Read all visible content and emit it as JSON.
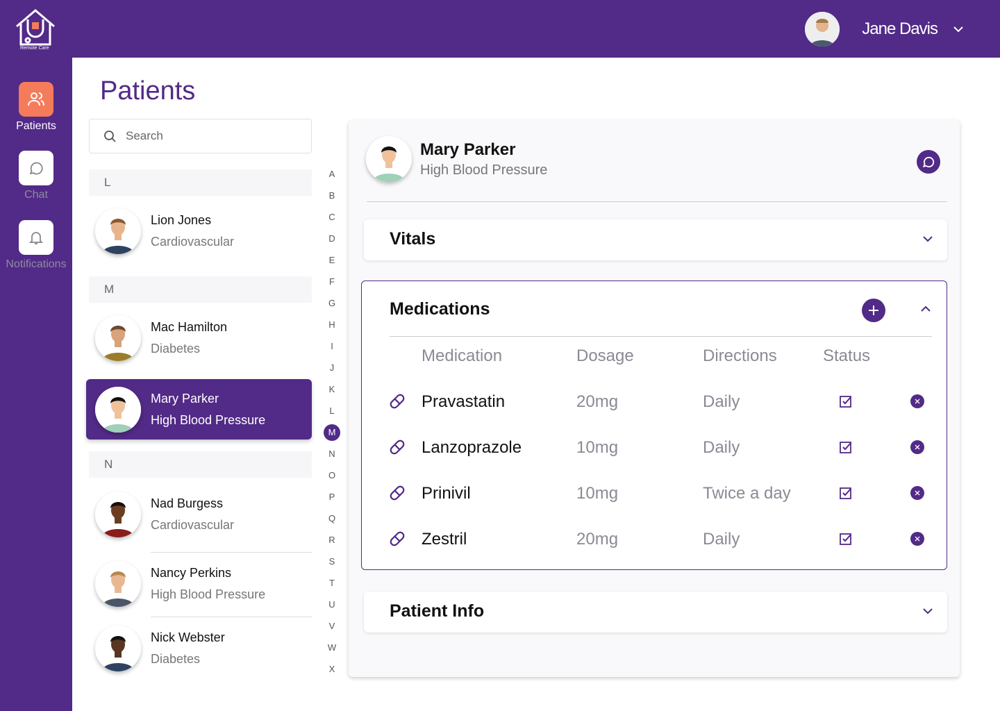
{
  "app": {
    "logo_text": "Remote Care",
    "colors": {
      "primary": "#522a87",
      "accent": "#f47c5a"
    }
  },
  "user": {
    "name": "Jane Davis",
    "icon": "chevron-down-icon"
  },
  "nav": [
    {
      "label": "Patients",
      "icon": "users-icon",
      "active": true
    },
    {
      "label": "Chat",
      "icon": "chat-icon"
    },
    {
      "label": "Notifications",
      "icon": "bell-icon"
    }
  ],
  "page_title": "Patients",
  "search": {
    "placeholder": "Search",
    "value": ""
  },
  "groups": {
    "L": "L",
    "M": "M",
    "N": "N"
  },
  "patients": [
    {
      "name": "Lion Jones",
      "condition": "Cardiovascular"
    },
    {
      "name": "Mac Hamilton",
      "condition": "Diabetes"
    },
    {
      "name": "Mary Parker",
      "condition": "High Blood Pressure",
      "selected": true
    },
    {
      "name": "Nad Burgess",
      "condition": "Cardiovascular"
    },
    {
      "name": "Nancy Perkins",
      "condition": "High Blood Pressure"
    },
    {
      "name": "Nick Webster",
      "condition": "Diabetes"
    }
  ],
  "alphabet": [
    "A",
    "B",
    "C",
    "D",
    "E",
    "F",
    "G",
    "H",
    "I",
    "J",
    "K",
    "L",
    "M",
    "N",
    "O",
    "P",
    "Q",
    "R",
    "S",
    "T",
    "U",
    "V",
    "W",
    "X"
  ],
  "alphabet_current": "M",
  "detail": {
    "name": "Mary Parker",
    "condition": "High Blood Pressure",
    "vitals": "Vitals",
    "medications": {
      "title": "Medications",
      "headers": [
        "Medication",
        "Dosage",
        "Directions",
        "Status"
      ],
      "rows": [
        {
          "name": "Pravastatin",
          "dosage": "20mg",
          "directions": "Daily",
          "status": "checked"
        },
        {
          "name": "Lanzoprazole",
          "dosage": "10mg",
          "directions": "Daily",
          "status": "checked"
        },
        {
          "name": "Prinivil",
          "dosage": "10mg",
          "directions": "Twice a day",
          "status": "checked"
        },
        {
          "name": "Zestril",
          "dosage": "20mg",
          "directions": "Daily",
          "status": "checked"
        }
      ]
    },
    "patient_info": "Patient Info"
  }
}
